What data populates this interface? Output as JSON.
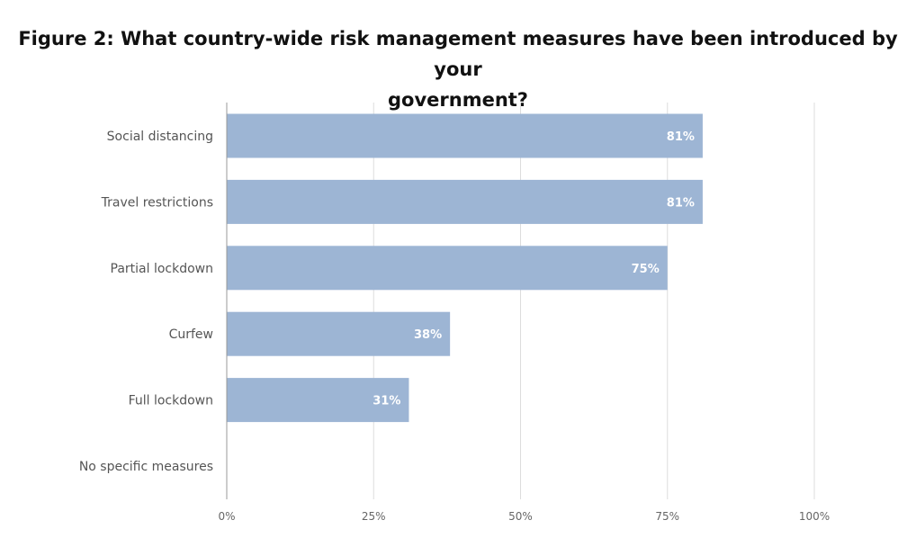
{
  "chart_data": {
    "type": "bar",
    "orientation": "horizontal",
    "title_line1": "Figure 2: What country-wide risk management measures have been introduced by your",
    "title_line2": "government?",
    "categories": [
      "Social distancing",
      "Travel restrictions",
      "Partial lockdown",
      "Curfew",
      "Full lockdown",
      "No specific measures"
    ],
    "values": [
      81,
      81,
      75,
      38,
      31,
      0
    ],
    "data_labels": [
      "81%",
      "81%",
      "75%",
      "38%",
      "31%",
      ""
    ],
    "xlim": [
      0,
      100
    ],
    "x_ticks": [
      0,
      25,
      50,
      75,
      100
    ],
    "x_tick_labels": [
      "0%",
      "25%",
      "50%",
      "75%",
      "100%"
    ],
    "xlabel": "",
    "ylabel": "",
    "grid": true,
    "legend": "none",
    "colors": {
      "bar": "#9db5d4",
      "grid": "#dddddd",
      "axis": "#999999"
    }
  }
}
